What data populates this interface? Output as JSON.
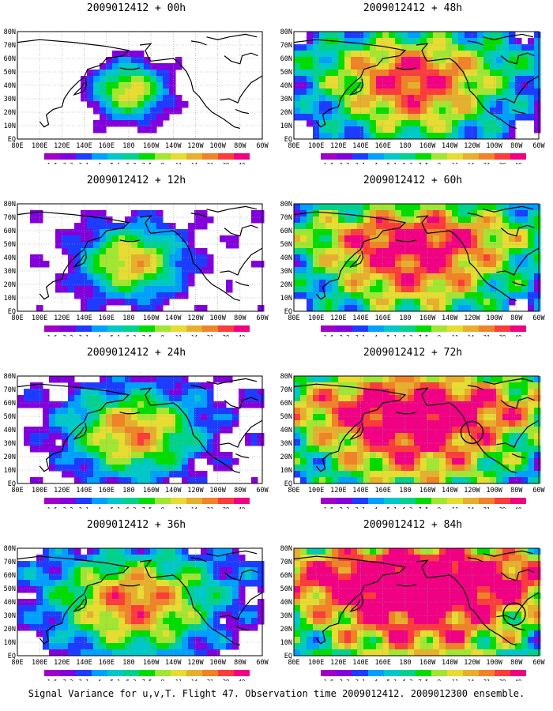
{
  "colorbar": {
    "labels": [
      "1.6",
      "2.2",
      "3.1",
      "4",
      "5.1",
      "6.3",
      "7.5",
      "9",
      "11",
      "14",
      "21",
      "29",
      "40"
    ],
    "colors": [
      "#a000c8",
      "#8200dc",
      "#1e3cff",
      "#00a0ff",
      "#00c8c8",
      "#00d28c",
      "#00dc00",
      "#a0e632",
      "#e6dc32",
      "#e6af2d",
      "#f08228",
      "#fa3c3c",
      "#f00082"
    ]
  },
  "lon_labels": [
    "80E",
    "100E",
    "120E",
    "140E",
    "160E",
    "180",
    "160W",
    "140W",
    "120W",
    "100W",
    "80W",
    "60W"
  ],
  "lat_labels": [
    "80N",
    "70N",
    "60N",
    "50N",
    "40N",
    "30N",
    "20N",
    "10N",
    "EQ"
  ],
  "panels": [
    {
      "title": "2009012412 + 00h",
      "lead_hours": 0,
      "circle": false
    },
    {
      "title": "2009012412 + 48h",
      "lead_hours": 48,
      "circle": false
    },
    {
      "title": "2009012412 + 12h",
      "lead_hours": 12,
      "circle": false
    },
    {
      "title": "2009012412 + 60h",
      "lead_hours": 60,
      "circle": false
    },
    {
      "title": "2009012412 + 24h",
      "lead_hours": 24,
      "circle": false
    },
    {
      "title": "2009012412 + 72h",
      "lead_hours": 72,
      "circle": true
    },
    {
      "title": "2009012412 + 36h",
      "lead_hours": 36,
      "circle": false
    },
    {
      "title": "2009012412 + 84h",
      "lead_hours": 84,
      "circle": true
    }
  ],
  "caption": "Signal Variance for u,v,T. Flight 47. Observation time 2009012412. 2009012300 ensemble.",
  "background_color": "#ffffff",
  "no_data_color": "#ffffff",
  "coast_color": "#000000",
  "grid_color": "#999999"
}
